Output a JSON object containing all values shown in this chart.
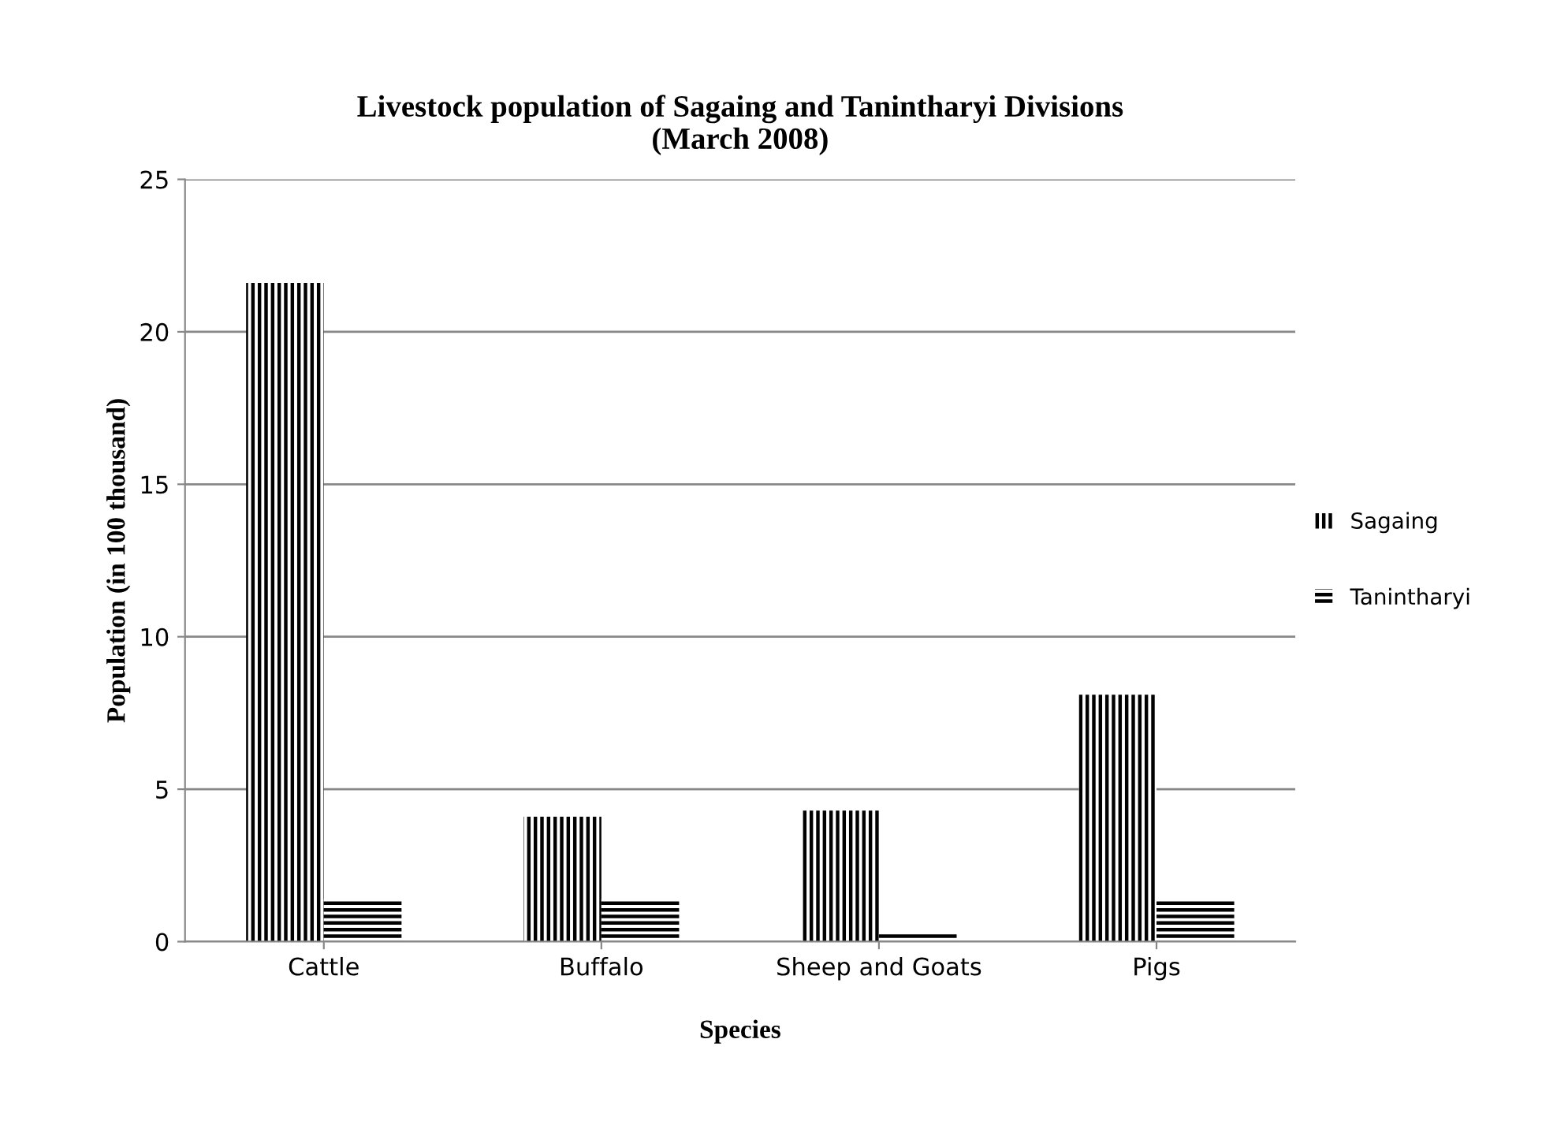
{
  "chart_data": {
    "type": "bar",
    "title": "Livestock population of Sagaing and Tanintharyi Divisions\n(March 2008)",
    "xlabel": "Species",
    "ylabel": "Population (in 100 thousand)",
    "categories": [
      "Cattle",
      "Buffalo",
      "Sheep and Goats",
      "Pigs"
    ],
    "series": [
      {
        "name": "Sagaing",
        "color": "#000000",
        "values": [
          21.6,
          4.1,
          4.3,
          8.1
        ]
      },
      {
        "name": "Tanintharyi",
        "color": "#000000",
        "values": [
          1.4,
          1.4,
          0.3,
          1.4
        ]
      }
    ],
    "ylim": [
      0,
      25
    ],
    "yticks": [
      0,
      5,
      10,
      15,
      20,
      25
    ],
    "grid": "y",
    "legend": "right"
  }
}
